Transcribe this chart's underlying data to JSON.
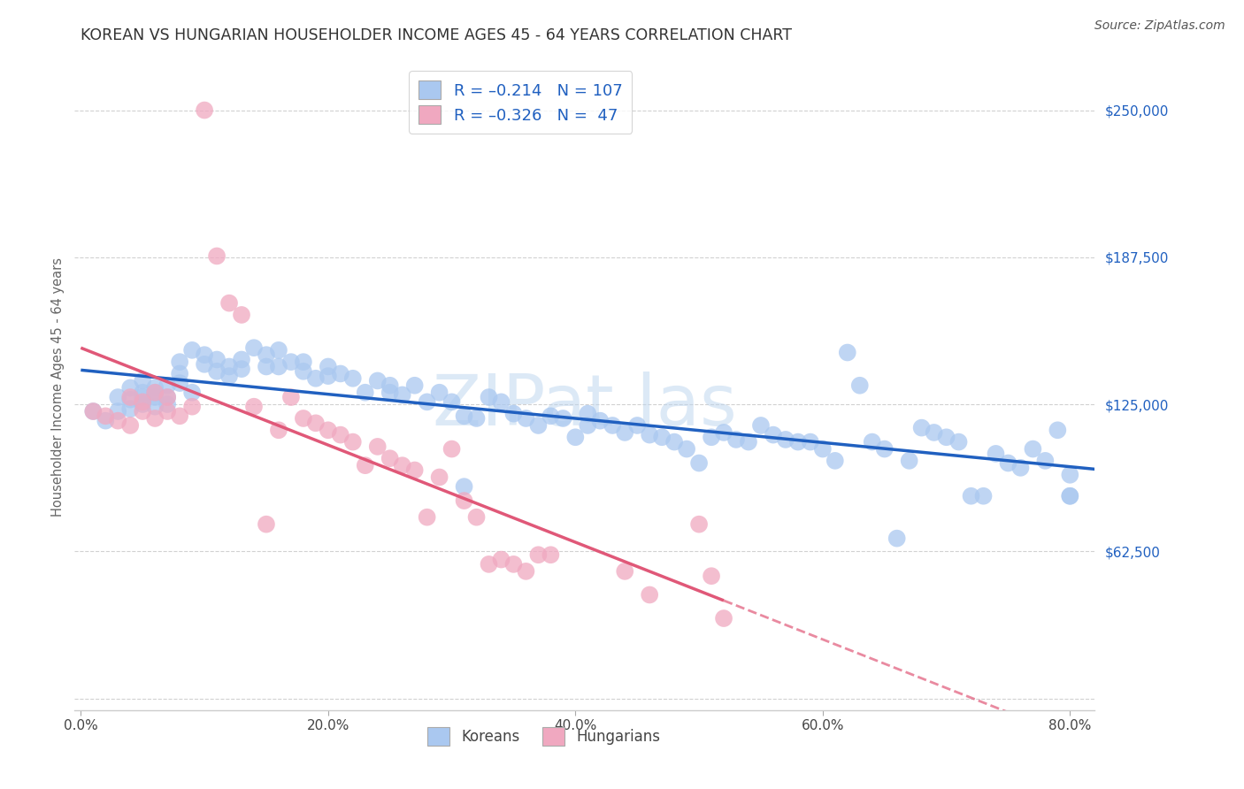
{
  "title": "KOREAN VS HUNGARIAN HOUSEHOLDER INCOME AGES 45 - 64 YEARS CORRELATION CHART",
  "source": "Source: ZipAtlas.com",
  "xlabel_ticks": [
    "0.0%",
    "20.0%",
    "40.0%",
    "60.0%",
    "80.0%"
  ],
  "xlabel_tick_vals": [
    0.0,
    0.2,
    0.4,
    0.6,
    0.8
  ],
  "ylabel": "Householder Income Ages 45 - 64 years",
  "ylabel_ticks": [
    0,
    62500,
    125000,
    187500,
    250000
  ],
  "ylabel_tick_labels": [
    "",
    "$62,500",
    "$125,000",
    "$187,500",
    "$250,000"
  ],
  "xlim": [
    -0.005,
    0.82
  ],
  "ylim": [
    -5000,
    270000
  ],
  "korean_color": "#aac8f0",
  "hungarian_color": "#f0a8c0",
  "korean_line_color": "#2060c0",
  "hungarian_line_color": "#e05878",
  "watermark": "ZIPat las",
  "korean_x": [
    0.01,
    0.02,
    0.03,
    0.03,
    0.04,
    0.04,
    0.04,
    0.05,
    0.05,
    0.05,
    0.05,
    0.06,
    0.06,
    0.06,
    0.06,
    0.07,
    0.07,
    0.07,
    0.08,
    0.08,
    0.08,
    0.09,
    0.09,
    0.1,
    0.1,
    0.11,
    0.11,
    0.12,
    0.12,
    0.13,
    0.13,
    0.14,
    0.15,
    0.15,
    0.16,
    0.16,
    0.17,
    0.18,
    0.18,
    0.19,
    0.2,
    0.2,
    0.21,
    0.22,
    0.23,
    0.24,
    0.25,
    0.25,
    0.26,
    0.27,
    0.28,
    0.29,
    0.3,
    0.31,
    0.31,
    0.32,
    0.33,
    0.34,
    0.35,
    0.36,
    0.37,
    0.38,
    0.39,
    0.4,
    0.41,
    0.41,
    0.42,
    0.43,
    0.44,
    0.45,
    0.46,
    0.47,
    0.48,
    0.49,
    0.5,
    0.51,
    0.52,
    0.53,
    0.54,
    0.55,
    0.56,
    0.57,
    0.58,
    0.59,
    0.6,
    0.61,
    0.62,
    0.63,
    0.64,
    0.65,
    0.66,
    0.67,
    0.68,
    0.69,
    0.7,
    0.71,
    0.72,
    0.73,
    0.74,
    0.75,
    0.76,
    0.77,
    0.78,
    0.79,
    0.8,
    0.8,
    0.8
  ],
  "korean_y": [
    122000,
    118000,
    128000,
    122000,
    132000,
    127000,
    123000,
    135000,
    130000,
    128000,
    125000,
    132000,
    128000,
    124000,
    130000,
    133000,
    128000,
    125000,
    143000,
    138000,
    134000,
    130000,
    148000,
    146000,
    142000,
    144000,
    139000,
    141000,
    137000,
    144000,
    140000,
    149000,
    141000,
    146000,
    141000,
    148000,
    143000,
    143000,
    139000,
    136000,
    141000,
    137000,
    138000,
    136000,
    130000,
    135000,
    133000,
    130000,
    129000,
    133000,
    126000,
    130000,
    126000,
    90000,
    120000,
    119000,
    128000,
    126000,
    121000,
    119000,
    116000,
    120000,
    119000,
    111000,
    121000,
    116000,
    118000,
    116000,
    113000,
    116000,
    112000,
    111000,
    109000,
    106000,
    100000,
    111000,
    113000,
    110000,
    109000,
    116000,
    112000,
    110000,
    109000,
    109000,
    106000,
    101000,
    147000,
    133000,
    109000,
    106000,
    68000,
    101000,
    115000,
    113000,
    111000,
    109000,
    86000,
    86000,
    104000,
    100000,
    98000,
    106000,
    101000,
    114000,
    95000,
    86000,
    86000
  ],
  "hungarian_x": [
    0.01,
    0.02,
    0.03,
    0.04,
    0.04,
    0.05,
    0.05,
    0.06,
    0.06,
    0.07,
    0.07,
    0.08,
    0.09,
    0.1,
    0.11,
    0.12,
    0.13,
    0.14,
    0.15,
    0.16,
    0.17,
    0.18,
    0.19,
    0.2,
    0.21,
    0.22,
    0.23,
    0.24,
    0.25,
    0.26,
    0.27,
    0.28,
    0.29,
    0.3,
    0.31,
    0.32,
    0.33,
    0.34,
    0.35,
    0.36,
    0.37,
    0.38,
    0.44,
    0.46,
    0.5,
    0.51,
    0.52
  ],
  "hungarian_y": [
    122000,
    120000,
    118000,
    128000,
    116000,
    126000,
    122000,
    130000,
    119000,
    128000,
    122000,
    120000,
    124000,
    250000,
    188000,
    168000,
    163000,
    124000,
    74000,
    114000,
    128000,
    119000,
    117000,
    114000,
    112000,
    109000,
    99000,
    107000,
    102000,
    99000,
    97000,
    77000,
    94000,
    106000,
    84000,
    77000,
    57000,
    59000,
    57000,
    54000,
    61000,
    61000,
    54000,
    44000,
    74000,
    52000,
    34000
  ]
}
